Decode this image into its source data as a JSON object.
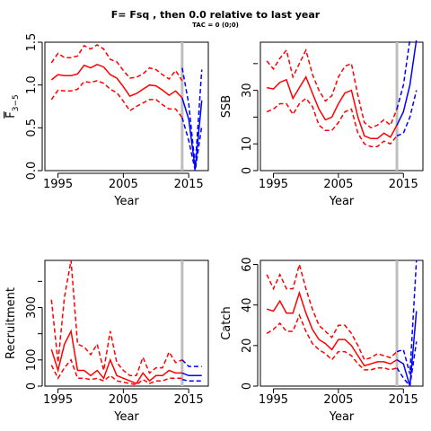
{
  "figure": {
    "title": "F= Fsq , then 0.0  relative to last year",
    "subtitle": "TAC = 0 (0;0)"
  },
  "colors": {
    "historical": "#ff0000",
    "projection": "#0000ff",
    "divider": "#bebebe"
  },
  "chart_data": [
    {
      "type": "line",
      "panel": "F",
      "xlabel": "Year",
      "ylabel": "F3-5",
      "ylabel_main": "F",
      "ylabel_sub": "3−5",
      "xlim": [
        1993,
        2018
      ],
      "ylim": [
        0,
        1.5
      ],
      "xticks": [
        "1995",
        "2005",
        "2015"
      ],
      "yticks": [
        "0.0",
        "0.5",
        "1.0",
        "1.5"
      ],
      "divider_year": 2014,
      "historical": {
        "x": [
          1994,
          1995,
          1996,
          1997,
          1998,
          1999,
          2000,
          2001,
          2002,
          2003,
          2004,
          2005,
          2006,
          2007,
          2008,
          2009,
          2010,
          2011,
          2012,
          2013,
          2014
        ],
        "median": [
          1.06,
          1.12,
          1.11,
          1.11,
          1.13,
          1.23,
          1.2,
          1.24,
          1.21,
          1.12,
          1.08,
          0.98,
          0.87,
          0.9,
          0.95,
          1.0,
          0.99,
          0.94,
          0.88,
          0.93,
          0.85
        ],
        "upper": [
          1.26,
          1.37,
          1.32,
          1.32,
          1.34,
          1.46,
          1.42,
          1.47,
          1.42,
          1.3,
          1.27,
          1.17,
          1.08,
          1.09,
          1.13,
          1.2,
          1.18,
          1.12,
          1.07,
          1.17,
          1.05
        ],
        "lower": [
          0.83,
          0.94,
          0.93,
          0.93,
          0.95,
          1.04,
          1.03,
          1.05,
          1.02,
          0.95,
          0.91,
          0.81,
          0.7,
          0.75,
          0.79,
          0.83,
          0.83,
          0.77,
          0.72,
          0.72,
          0.62
        ]
      },
      "projection": {
        "x": [
          2014,
          2015,
          2016,
          2017
        ],
        "median": [
          0.85,
          0.6,
          0.02,
          0.82
        ],
        "upper": [
          1.2,
          0.78,
          0.05,
          1.18
        ],
        "lower": [
          0.62,
          0.35,
          0.0,
          0.52
        ]
      }
    },
    {
      "type": "line",
      "panel": "SSB",
      "xlabel": "Year",
      "ylabel": "SSB",
      "xlim": [
        1993,
        2018
      ],
      "ylim": [
        0,
        48
      ],
      "xticks": [
        "1995",
        "2005",
        "2015"
      ],
      "yticks": [
        "0",
        "10",
        "30"
      ],
      "divider_year": 2014,
      "historical": {
        "x": [
          1994,
          1995,
          1996,
          1997,
          1998,
          1999,
          2000,
          2001,
          2002,
          2003,
          2004,
          2005,
          2006,
          2007,
          2008,
          2009,
          2010,
          2011,
          2012,
          2013,
          2014
        ],
        "median": [
          31,
          30.5,
          33,
          34,
          27,
          31,
          35,
          29,
          23,
          19,
          20,
          25,
          29,
          30,
          20,
          13,
          12,
          12,
          14,
          12.5,
          17
        ],
        "upper": [
          41,
          38,
          42,
          45,
          35,
          40,
          45,
          36,
          30,
          26,
          28,
          35,
          39,
          40,
          28,
          18,
          16,
          17,
          19,
          17,
          23
        ],
        "lower": [
          22,
          23,
          25,
          25,
          21,
          25,
          27,
          24,
          17,
          15,
          15,
          18,
          22,
          23,
          14,
          10,
          9,
          9,
          11,
          10,
          13
        ]
      },
      "projection": {
        "x": [
          2014,
          2015,
          2016,
          2017
        ],
        "median": [
          17,
          22,
          32,
          56
        ],
        "upper": [
          23,
          32,
          50,
          80
        ],
        "lower": [
          13,
          14,
          20,
          30
        ]
      }
    },
    {
      "type": "line",
      "panel": "Recruitment",
      "xlabel": "Year",
      "ylabel": "Recruitment",
      "xlim": [
        1993,
        2018
      ],
      "ylim": [
        0,
        480
      ],
      "xticks": [
        "1995",
        "2005",
        "2015"
      ],
      "yticks": [
        "0",
        "100",
        "300"
      ],
      "divider_year": 2014,
      "historical": {
        "x": [
          1994,
          1995,
          1996,
          1997,
          1998,
          1999,
          2000,
          2001,
          2002,
          2003,
          2004,
          2005,
          2006,
          2007,
          2008,
          2009,
          2010,
          2011,
          2012,
          2013,
          2014
        ],
        "median": [
          140,
          60,
          160,
          210,
          60,
          60,
          40,
          60,
          30,
          100,
          40,
          30,
          20,
          10,
          50,
          20,
          40,
          40,
          60,
          50,
          50
        ],
        "upper": [
          330,
          90,
          340,
          480,
          160,
          150,
          120,
          160,
          60,
          210,
          90,
          60,
          40,
          40,
          110,
          50,
          70,
          70,
          130,
          90,
          100
        ],
        "lower": [
          80,
          30,
          70,
          100,
          30,
          30,
          25,
          30,
          20,
          40,
          20,
          15,
          10,
          5,
          25,
          10,
          20,
          20,
          30,
          30,
          30
        ]
      },
      "projection": {
        "x": [
          2014,
          2015,
          2016,
          2017
        ],
        "median": [
          50,
          40,
          40,
          40
        ],
        "upper": [
          100,
          75,
          75,
          75
        ],
        "lower": [
          25,
          20,
          20,
          20
        ]
      }
    },
    {
      "type": "line",
      "panel": "Catch",
      "xlabel": "Year",
      "ylabel": "Catch",
      "xlim": [
        1993,
        2018
      ],
      "ylim": [
        0,
        62
      ],
      "xticks": [
        "1995",
        "2005",
        "2015"
      ],
      "yticks": [
        "0",
        "20",
        "40",
        "60"
      ],
      "divider_year": 2014,
      "historical": {
        "x": [
          1994,
          1995,
          1996,
          1997,
          1998,
          1999,
          2000,
          2001,
          2002,
          2003,
          2004,
          2005,
          2006,
          2007,
          2008,
          2009,
          2010,
          2011,
          2012,
          2013,
          2014
        ],
        "median": [
          38,
          37,
          42,
          36,
          36,
          46,
          36,
          28,
          23,
          21,
          18,
          23,
          23,
          20,
          15,
          10,
          11,
          12,
          12,
          11,
          13
        ],
        "upper": [
          55,
          48,
          55,
          48,
          48,
          60,
          48,
          38,
          30,
          27,
          24,
          30,
          30,
          26,
          20,
          13,
          14,
          16,
          15,
          14,
          17
        ],
        "lower": [
          26,
          28,
          31,
          27,
          27,
          35,
          27,
          21,
          18,
          16,
          13,
          17,
          17,
          15,
          11,
          8,
          8,
          9,
          9,
          8,
          9
        ]
      },
      "projection": {
        "x": [
          2014,
          2015,
          2016,
          2017
        ],
        "median": [
          13,
          11,
          0,
          37
        ],
        "upper": [
          17,
          18,
          6,
          62
        ],
        "lower": [
          9,
          4,
          0,
          22
        ]
      }
    }
  ]
}
